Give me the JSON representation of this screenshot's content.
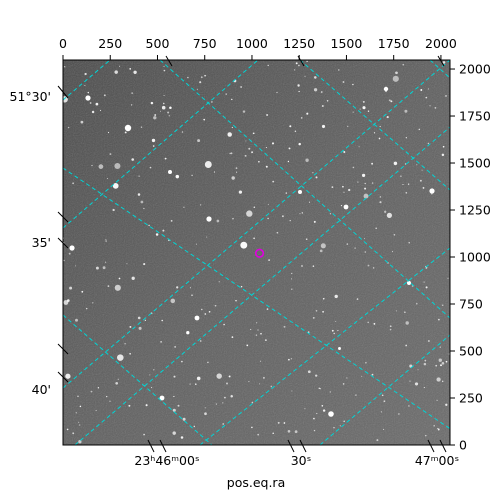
{
  "chart_data": {
    "type": "image",
    "image_description": "grayscale astronomical star field with dashed RA/Dec coordinate grid",
    "pixel_axis_top": {
      "ticks": [
        0,
        250,
        500,
        750,
        1000,
        1250,
        1500,
        1750,
        2000
      ],
      "range": [
        0,
        2048
      ]
    },
    "pixel_axis_right": {
      "ticks": [
        0,
        250,
        500,
        750,
        1000,
        1250,
        1500,
        1750,
        2000
      ],
      "range": [
        0,
        2048
      ]
    },
    "ra_axis": {
      "label": "pos.eq.ra",
      "ticks": [
        {
          "text": "23ʰ46ᵐ00ˢ",
          "top": 1
        },
        {
          "text": "30ˢ",
          "top": 0
        },
        {
          "text": "47ᵐ00ˢ",
          "top": 0
        }
      ]
    },
    "dec_axis": {
      "ticks": [
        "51°30'",
        "35'",
        "40'"
      ]
    },
    "marker": {
      "type": "circle",
      "color": "#e000e0",
      "x_pix": 1040,
      "y_pix": 1020
    },
    "colors": {
      "grid": "#00d5d5",
      "background": "#5a5a5a",
      "marker": "#e000e0"
    }
  }
}
